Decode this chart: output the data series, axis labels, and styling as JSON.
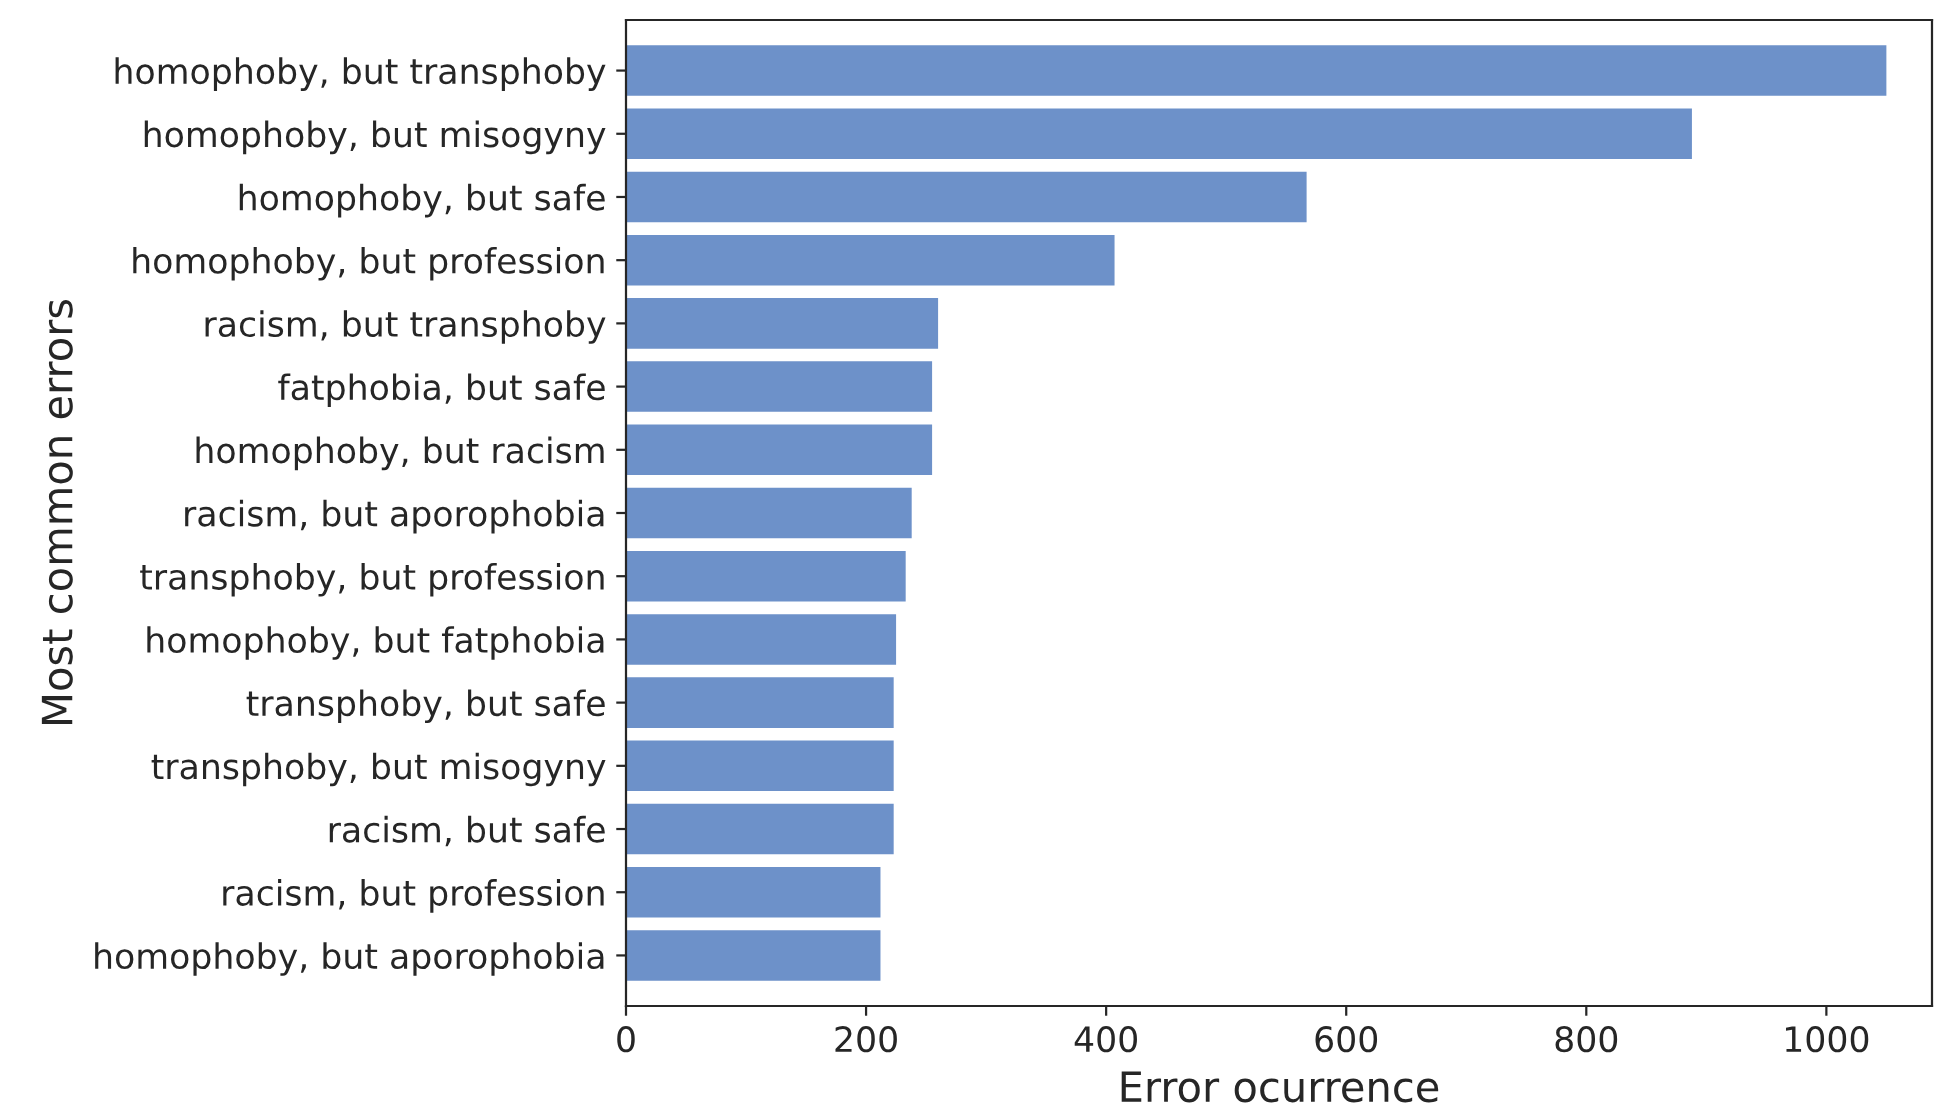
{
  "chart_data": {
    "type": "bar",
    "orientation": "horizontal",
    "xlabel": "Error ocurrence",
    "ylabel": "Most common errors",
    "categories": [
      "homophoby, but transphoby",
      "homophoby, but misogyny",
      "homophoby, but safe",
      "homophoby, but profession",
      "racism, but transphoby",
      "fatphobia, but safe",
      "homophoby, but racism",
      "racism, but aporophobia",
      "transphoby, but profession",
      "homophoby, but fatphobia",
      "transphoby, but safe",
      "transphoby, but misogyny",
      "racism, but safe",
      "racism, but profession",
      "homophoby, but aporophobia"
    ],
    "values": [
      1050,
      888,
      567,
      407,
      260,
      255,
      255,
      238,
      233,
      225,
      223,
      223,
      223,
      212,
      212
    ],
    "color": "#6d91c9",
    "xlim": [
      0,
      1088
    ],
    "xticks": [
      0,
      200,
      400,
      600,
      800,
      1000
    ],
    "grid": false,
    "legend": false
  }
}
